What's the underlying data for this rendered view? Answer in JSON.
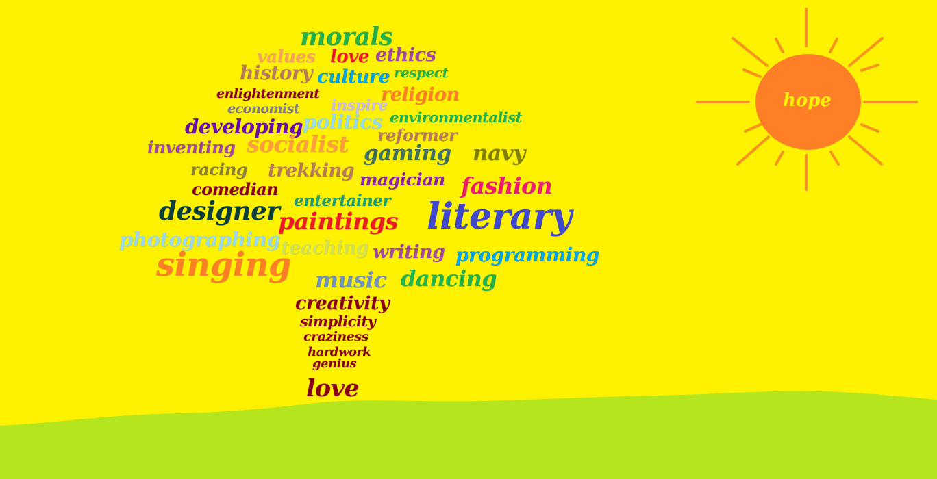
{
  "colors": {
    "sky": "#FFF200",
    "ground": "#B5E61D",
    "sun_fill": "#FF7F27",
    "sun_rays": "#F7931E",
    "sun_text": "#FFF200"
  },
  "sun": {
    "label": "hope"
  },
  "words": [
    {
      "text": "morals",
      "color": "#22B14C"
    },
    {
      "text": "values",
      "color": "#F7A35C"
    },
    {
      "text": "love",
      "color": "#ED1C24"
    },
    {
      "text": "ethics",
      "color": "#A349A4"
    },
    {
      "text": "history",
      "color": "#B97A57"
    },
    {
      "text": "culture",
      "color": "#00A2E8"
    },
    {
      "text": "respect",
      "color": "#22B14C"
    },
    {
      "text": "enlightenment",
      "color": "#880015"
    },
    {
      "text": "religion",
      "color": "#FF7F27"
    },
    {
      "text": "economist",
      "color": "#7F7F7F"
    },
    {
      "text": "inspire",
      "color": "#C8BFE7"
    },
    {
      "text": "developing",
      "color": "#6A0DAD"
    },
    {
      "text": "politics",
      "color": "#99D9EA"
    },
    {
      "text": "environmentalist",
      "color": "#22B14C"
    },
    {
      "text": "reformer",
      "color": "#B97A57"
    },
    {
      "text": "inventing",
      "color": "#A349A4"
    },
    {
      "text": "socialist",
      "color": "#FF9E3D"
    },
    {
      "text": "gaming",
      "color": "#3F6F5F"
    },
    {
      "text": "navy",
      "color": "#808000"
    },
    {
      "text": "racing",
      "color": "#8B7D3A"
    },
    {
      "text": "trekking",
      "color": "#B97A57"
    },
    {
      "text": "magician",
      "color": "#8E24AA"
    },
    {
      "text": "fashion",
      "color": "#ED1C6F"
    },
    {
      "text": "comedian",
      "color": "#880015"
    },
    {
      "text": "entertainer",
      "color": "#1B9E77"
    },
    {
      "text": "designer",
      "color": "#0B3D3A"
    },
    {
      "text": "paintings",
      "color": "#ED1C24"
    },
    {
      "text": "literary",
      "color": "#3F48CC"
    },
    {
      "text": "photographing",
      "color": "#99D9EA"
    },
    {
      "text": "teaching",
      "color": "#D4E157"
    },
    {
      "text": "writing",
      "color": "#A349A4"
    },
    {
      "text": "programming",
      "color": "#00A2E8"
    },
    {
      "text": "singing",
      "color": "#FF7F27"
    },
    {
      "text": "music",
      "color": "#7092BE"
    },
    {
      "text": "dancing",
      "color": "#22B14C"
    },
    {
      "text": "creativity",
      "color": "#880015"
    },
    {
      "text": "simplicity",
      "color": "#880015"
    },
    {
      "text": "craziness",
      "color": "#880015"
    },
    {
      "text": "hardwork",
      "color": "#880015"
    },
    {
      "text": "genius",
      "color": "#880015"
    },
    {
      "text": "love",
      "color": "#880015"
    }
  ]
}
